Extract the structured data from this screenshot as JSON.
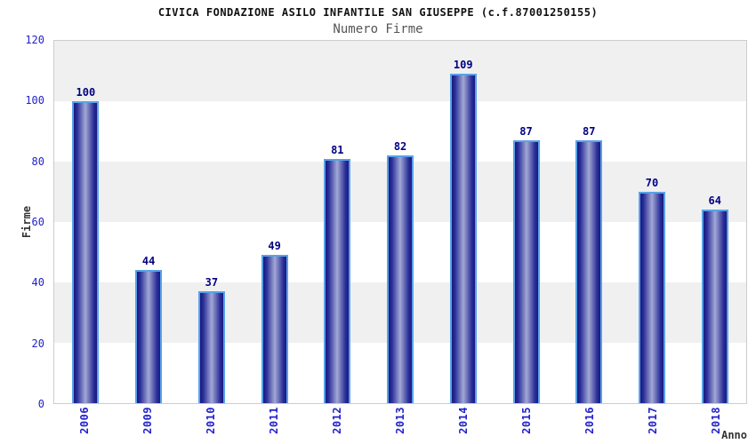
{
  "chart_data": {
    "type": "bar",
    "title": "CIVICA FONDAZIONE ASILO INFANTILE SAN GIUSEPPE (c.f.87001250155)",
    "subtitle": "Numero Firme",
    "xlabel": "Anno",
    "ylabel": "Firme",
    "categories": [
      "2006",
      "2009",
      "2010",
      "2011",
      "2012",
      "2013",
      "2014",
      "2015",
      "2016",
      "2017",
      "2018"
    ],
    "values": [
      100,
      44,
      37,
      49,
      81,
      82,
      109,
      87,
      87,
      70,
      64
    ],
    "ylim": [
      0,
      120
    ],
    "ytick_step": 20,
    "ytick_labels": [
      "0",
      "20",
      "40",
      "60",
      "80",
      "100",
      "120"
    ],
    "grid": "alternating horizontal bands every 20 units",
    "legend": "none"
  },
  "colors": {
    "bar_edge": "#181880",
    "bar_edge2": "#2b2f99",
    "bar_mid": "#a2a8d4",
    "bar_border": "#58a2e8",
    "value_label": "#000082",
    "tick_label": "#2222cc",
    "band_gray": "#f0f0f0",
    "plot_border": "#cccccc",
    "subtitle_gray": "#555555",
    "axis_label": "#333333"
  }
}
